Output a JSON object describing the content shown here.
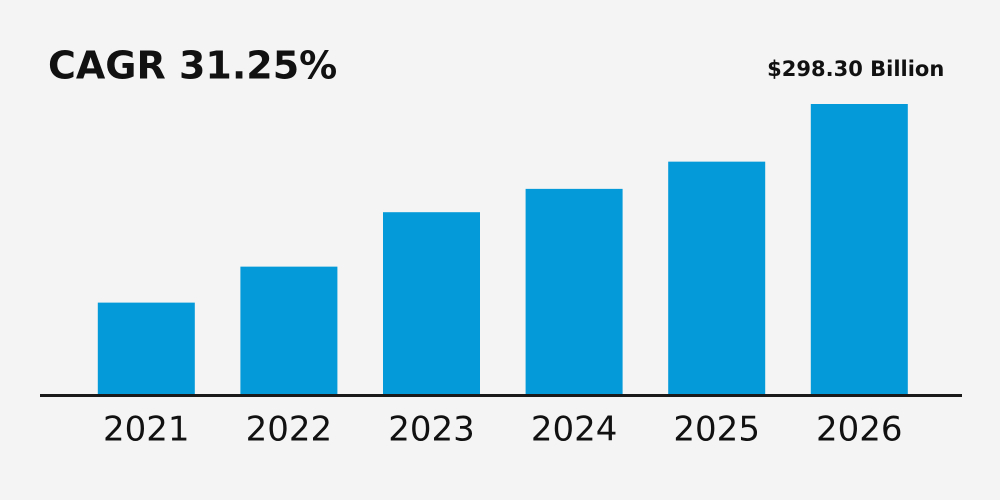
{
  "chart_data": {
    "type": "bar",
    "title": "CAGR 31.25%",
    "categories": [
      "2021",
      "2022",
      "2023",
      "2024",
      "2025",
      "2026"
    ],
    "values": [
      94,
      131,
      187,
      211,
      239,
      298.3
    ],
    "value_labels": [
      null,
      null,
      null,
      null,
      null,
      "$298.30 Billion"
    ],
    "color": "#0499d8"
  }
}
